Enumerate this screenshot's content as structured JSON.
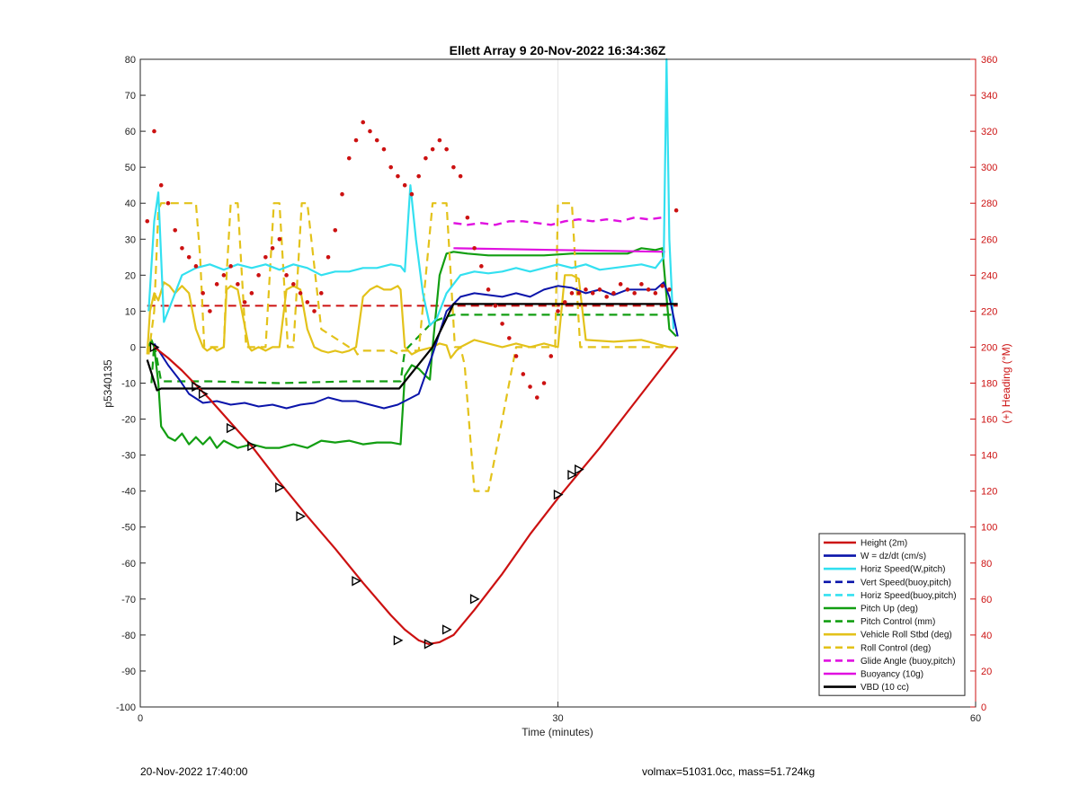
{
  "chart_data": {
    "type": "line",
    "title": "Ellett Array 9 20-Nov-2022 16:34:36Z",
    "xlabel": "Time (minutes)",
    "ylabel_left": "p5340135",
    "ylabel_right": "(+) Heading (°M)",
    "xlim": [
      0,
      60
    ],
    "ylim_left": [
      -100,
      80
    ],
    "ylim_right": [
      0,
      360
    ],
    "x_ticks": [
      0,
      30,
      60
    ],
    "y_ticks_left": [
      80,
      70,
      60,
      50,
      40,
      30,
      20,
      10,
      0,
      -10,
      -20,
      -30,
      -40,
      -50,
      -60,
      -70,
      -80,
      -90,
      -100
    ],
    "y_ticks_right": [
      360,
      340,
      320,
      300,
      280,
      260,
      240,
      220,
      200,
      180,
      160,
      140,
      120,
      100,
      80,
      60,
      40,
      20,
      0
    ],
    "grid": "x-only",
    "legend_position": "bottom-right",
    "series": [
      {
        "name": "Height (2m)",
        "color": "#cc1111",
        "style": "solid",
        "width": 2.2,
        "x": [
          1.0,
          2.0,
          3.0,
          4.0,
          5.0,
          6.5,
          8.0,
          10.0,
          12.0,
          14.0,
          16.0,
          18.0,
          19.0,
          20.0,
          20.7,
          21.5,
          22.5,
          24.0,
          26.0,
          28.0,
          30.0,
          31.5,
          33.0,
          35.0,
          37.0,
          38.6
        ],
        "y": [
          0,
          -3,
          -6.5,
          -10.5,
          -14.5,
          -21,
          -27.5,
          -37.5,
          -47,
          -56,
          -65.5,
          -74.5,
          -78.5,
          -81.5,
          -82.5,
          -82,
          -80,
          -73,
          -63,
          -52,
          -42,
          -35,
          -28,
          -18,
          -8,
          0
        ]
      },
      {
        "name": "W = dz/dt (cm/s)",
        "color": "#0a14aa",
        "style": "solid",
        "width": 2,
        "x": [
          1.0,
          2.0,
          2.8,
          3.5,
          4.5,
          5.5,
          6.5,
          7.5,
          8.5,
          9.5,
          10.5,
          11.5,
          12.5,
          13.5,
          14.5,
          15.5,
          16.5,
          17.5,
          18.5,
          19.0,
          20.0,
          21.0,
          22.0,
          23.0,
          24.0,
          25.0,
          26.0,
          27.0,
          28.0,
          29.0,
          30.0,
          31.0,
          32.0,
          33.0,
          34.0,
          35.0,
          36.0,
          37.0,
          37.6,
          38.0,
          38.6
        ],
        "y": [
          1,
          -5,
          -9,
          -13,
          -15.5,
          -15,
          -16,
          -15.5,
          -16.5,
          -16,
          -17,
          -16,
          -15.5,
          -14,
          -15,
          -15,
          -16,
          -17,
          -16,
          -15,
          -13,
          -2,
          10,
          14,
          15,
          14.5,
          14,
          15,
          14,
          16,
          17,
          16.5,
          15,
          16,
          14.5,
          16,
          16,
          16,
          18,
          14,
          3
        ]
      },
      {
        "name": "Horiz Speed(W,pitch)",
        "color": "#33e0f0",
        "style": "solid",
        "width": 2.2,
        "x": [
          0.6,
          1.0,
          1.3,
          1.7,
          2.2,
          3.0,
          4.0,
          5.0,
          6.0,
          7.0,
          8.0,
          9.0,
          10.0,
          11.0,
          12.0,
          13.0,
          14.0,
          15.0,
          16.0,
          17.0,
          18.0,
          18.7,
          19.0,
          19.4,
          19.8,
          20.3,
          20.8,
          21.3,
          22.0,
          23.0,
          24.0,
          25.0,
          26.0,
          27.0,
          28.0,
          29.0,
          30.0,
          31.0,
          32.0,
          33.0,
          34.0,
          35.0,
          36.0,
          37.0,
          37.6,
          37.8,
          38.0,
          38.3
        ],
        "y": [
          10,
          35,
          43,
          7,
          12,
          20,
          22,
          23,
          21.5,
          23,
          22,
          23,
          21.5,
          23,
          22,
          20,
          21,
          21,
          22,
          22,
          23,
          22.5,
          21,
          45,
          30,
          15,
          6,
          8,
          15,
          20,
          21,
          20.5,
          21,
          22,
          21,
          22,
          23,
          22,
          23,
          21.5,
          22,
          22.5,
          23,
          22,
          25,
          80,
          30,
          5
        ]
      },
      {
        "name": "Vert Speed(buoy,pitch)",
        "color": "#0a14aa",
        "style": "dashed",
        "width": 2.4,
        "x": [],
        "y": []
      },
      {
        "name": "Horiz Speed(buoy,pitch)",
        "color": "#33e0f0",
        "style": "dashed",
        "width": 2.4,
        "x": [],
        "y": []
      },
      {
        "name": "Pitch Up (deg)",
        "color": "#129e12",
        "style": "solid",
        "width": 2.2,
        "x": [
          0.5,
          0.8,
          1.0,
          1.3,
          1.5,
          2.0,
          2.5,
          3.0,
          3.5,
          4.0,
          4.5,
          5.0,
          5.5,
          6.0,
          6.5,
          7.0,
          8.0,
          9.0,
          10.0,
          11.0,
          12.0,
          13.0,
          14.0,
          15.0,
          16.0,
          17.0,
          18.0,
          18.7,
          19.0,
          19.5,
          20.0,
          20.5,
          20.8,
          21.0,
          21.5,
          22.0,
          22.5,
          23.5,
          25.0,
          27.0,
          29.0,
          31.0,
          33.0,
          35.0,
          36.0,
          37.0,
          37.5,
          38.0,
          38.5
        ],
        "y": [
          -1,
          2,
          0,
          -10,
          -22,
          -25,
          -26,
          -24,
          -27,
          -25,
          -27,
          -25,
          -28,
          -26,
          -27,
          -28,
          -27,
          -28,
          -28,
          -27,
          -28,
          -26,
          -26.5,
          -26,
          -27,
          -26.5,
          -26.5,
          -27,
          -8,
          -5,
          -6,
          -8,
          -9,
          0,
          20,
          26,
          26.5,
          26,
          25.5,
          25.5,
          25.5,
          26,
          26,
          26,
          27.5,
          27,
          27.5,
          5,
          3
        ]
      },
      {
        "name": "Pitch Control (mm)",
        "color": "#129e12",
        "style": "dashed",
        "width": 2.2,
        "x": [
          0.8,
          1.0,
          1.5,
          5.0,
          10.0,
          15.0,
          18.7,
          19.0,
          20.0,
          21.0,
          22.0,
          22.5,
          30.0,
          38.5
        ],
        "y": [
          -10,
          1,
          -9.5,
          -9.5,
          -10,
          -9.5,
          -9.5,
          -1,
          3,
          7,
          8.5,
          9,
          9,
          9
        ]
      },
      {
        "name": "Vehicle Roll Stbd (deg)",
        "color": "#e3c21a",
        "style": "solid",
        "width": 2.2,
        "x": [
          0.5,
          0.7,
          1.0,
          1.3,
          1.7,
          2.1,
          2.5,
          3.0,
          3.5,
          4.0,
          4.5,
          4.8,
          5.2,
          5.5,
          6.0,
          6.2,
          6.5,
          7.0,
          7.3,
          7.8,
          8.0,
          8.5,
          9.0,
          9.5,
          10.0,
          10.5,
          11.0,
          11.5,
          12.0,
          12.5,
          13.0,
          13.5,
          14.0,
          14.5,
          15.0,
          15.5,
          16.0,
          16.5,
          17.0,
          17.5,
          18.0,
          18.5,
          18.7,
          19.0,
          19.5,
          20.0,
          21.0,
          21.5,
          22.0,
          22.3,
          22.7,
          23.0,
          23.5,
          24.0,
          25.0,
          26.0,
          27.0,
          28.0,
          29.0,
          30.0,
          30.5,
          31.0,
          31.5,
          32.0,
          34.0,
          36.0,
          37.0,
          38.0,
          38.5
        ],
        "y": [
          -2,
          10,
          15,
          13,
          18,
          17,
          15,
          17,
          15,
          5,
          0,
          -1,
          0,
          -1,
          0,
          16,
          17,
          16,
          10,
          0,
          -1,
          0,
          -1,
          0,
          0,
          16,
          17,
          16,
          5,
          0,
          -1,
          -1.5,
          -1,
          -1.5,
          -1,
          0,
          14,
          16,
          17,
          16,
          16,
          17,
          16,
          0,
          -2,
          -1,
          0,
          1,
          0.5,
          -3,
          -1,
          0,
          1,
          2,
          1,
          0,
          1,
          0,
          1,
          0,
          20,
          20,
          19,
          2,
          1.5,
          2,
          1,
          0,
          0
        ]
      },
      {
        "name": "Roll Control (deg)",
        "color": "#e3c21a",
        "style": "dashed",
        "width": 2.2,
        "x": [
          0.6,
          1.0,
          1.3,
          1.5,
          2.0,
          3.0,
          4.0,
          4.3,
          4.6,
          5.0,
          6.0,
          6.2,
          6.5,
          7.0,
          7.3,
          7.6,
          8.0,
          9.0,
          9.3,
          9.6,
          10.0,
          10.3,
          10.6,
          11.0,
          11.3,
          11.6,
          12.0,
          13.0,
          15.0,
          15.3,
          15.6,
          16.0,
          17.0,
          18.0,
          18.6,
          18.8,
          20.0,
          21.0,
          21.5,
          22.0,
          22.3,
          22.6,
          23.0,
          23.3,
          23.6,
          24.0,
          24.3,
          25.0,
          26.0,
          27.0,
          28.0,
          29.0,
          29.5,
          29.8,
          30.0,
          31.0,
          31.3,
          31.6,
          32.0,
          34.0,
          36.0,
          37.0,
          38.0
        ],
        "y": [
          -2,
          10,
          38,
          40,
          40,
          40,
          40,
          25,
          0,
          0,
          0,
          20,
          40,
          40,
          20,
          0,
          0,
          0,
          20,
          40,
          40,
          20,
          0,
          0,
          20,
          40,
          40,
          5,
          0,
          0,
          -2,
          -1,
          -1,
          -1,
          -2,
          -1,
          -1,
          40,
          40,
          40,
          20,
          0,
          0,
          -5,
          -20,
          -40,
          -40,
          -40,
          -20,
          0,
          0,
          0,
          0,
          0,
          40,
          40,
          20,
          0,
          0,
          0,
          0,
          0,
          0
        ]
      },
      {
        "name": "Glide Angle (buoy,pitch)",
        "color": "#e010e0",
        "style": "dashed",
        "width": 2.4,
        "x": [
          22.5,
          23.5,
          24.5,
          25.5,
          26.5,
          27.5,
          28.5,
          29.5,
          30.5,
          31.5,
          32.5,
          33.5,
          34.5,
          35.5,
          36.5,
          37.5
        ],
        "y": [
          34.5,
          34,
          34.5,
          34,
          35,
          35,
          34.5,
          34,
          35,
          35.5,
          35,
          35.5,
          35,
          36,
          35.5,
          36
        ]
      },
      {
        "name": "Buoyancy (10g)",
        "color": "#e010e0",
        "style": "solid",
        "width": 2.2,
        "x": [
          22.5,
          30,
          37.7
        ],
        "y": [
          27.5,
          27,
          26.5
        ]
      },
      {
        "name": "VBD (10 cc)",
        "color": "#000000",
        "style": "solid",
        "width": 2.2,
        "x": [
          0.5,
          1.2,
          1.5,
          5,
          10,
          15,
          18.6,
          21.0,
          22.5,
          30,
          38.6
        ],
        "y": [
          -3.5,
          -12,
          -11.5,
          -11.5,
          -11.5,
          -11.5,
          -11.5,
          0,
          12,
          12,
          12
        ]
      }
    ],
    "extra_lines": [
      {
        "color": "#cc1111",
        "style": "dashed",
        "x": [
          0.5,
          38.6
        ],
        "y": [
          11.5,
          11.5
        ]
      }
    ],
    "heading_points": {
      "color": "#cc1111",
      "axis": "right",
      "x": [
        0.5,
        1.0,
        1.5,
        2.0,
        2.5,
        3.0,
        3.5,
        4.0,
        4.5,
        5.0,
        5.5,
        6.0,
        6.5,
        7.0,
        7.5,
        8.0,
        8.5,
        9.0,
        9.5,
        10.0,
        10.5,
        11.0,
        11.5,
        12.0,
        12.5,
        13.0,
        13.5,
        14.0,
        14.5,
        15.0,
        15.5,
        16.0,
        16.5,
        17.0,
        17.5,
        18.0,
        18.5,
        19.0,
        19.5,
        20.0,
        20.5,
        21.0,
        21.5,
        22.0,
        22.5,
        23.0,
        23.5,
        24.0,
        24.5,
        25.0,
        25.5,
        26.0,
        26.5,
        27.0,
        27.5,
        28.0,
        28.5,
        29.0,
        29.5,
        30.0,
        30.5,
        31.0,
        31.5,
        32.0,
        32.5,
        33.0,
        33.5,
        34.0,
        34.5,
        35.0,
        35.5,
        36.0,
        36.5,
        37.0,
        37.5,
        38.0,
        38.5
      ],
      "y": [
        270,
        320,
        290,
        280,
        265,
        255,
        250,
        245,
        230,
        220,
        235,
        240,
        245,
        235,
        225,
        230,
        240,
        250,
        255,
        260,
        240,
        235,
        230,
        225,
        220,
        230,
        250,
        265,
        285,
        305,
        315,
        325,
        320,
        315,
        310,
        300,
        295,
        290,
        285,
        295,
        305,
        310,
        315,
        310,
        300,
        295,
        272,
        255,
        245,
        232,
        223,
        213,
        205,
        195,
        185,
        178,
        172,
        180,
        195,
        220,
        225,
        230,
        230,
        232,
        230,
        232,
        228,
        230,
        235,
        232,
        230,
        235,
        232,
        230,
        234,
        232,
        276
      ]
    },
    "markers": {
      "x": [
        1.0,
        4.0,
        4.5,
        6.5,
        8.0,
        10.0,
        11.5,
        15.5,
        18.5,
        20.7,
        22.0,
        24.0,
        30.0,
        31.0,
        31.5
      ],
      "y": [
        0,
        -11,
        -13,
        -22.5,
        -27.5,
        -39,
        -47,
        -65,
        -81.5,
        -82.5,
        -78.5,
        -70,
        -41,
        -35.5,
        -34
      ]
    }
  },
  "footer": {
    "left": "20-Nov-2022 17:40:00",
    "right": "volmax=51031.0cc, mass=51.724kg"
  }
}
